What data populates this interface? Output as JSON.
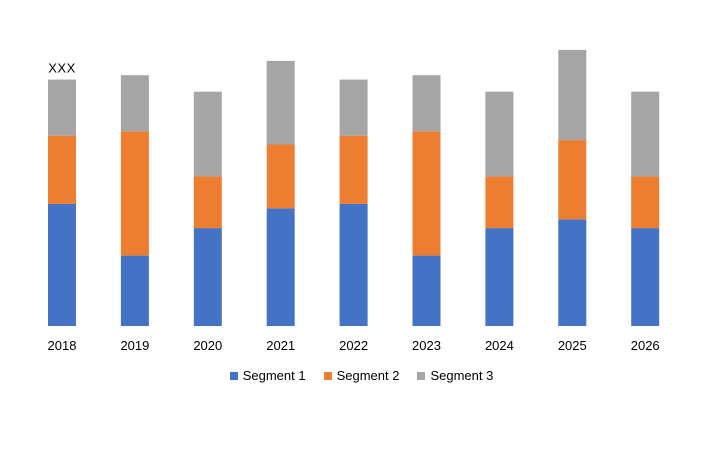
{
  "chart_data": {
    "type": "bar",
    "stacked": true,
    "categories": [
      "2018",
      "2019",
      "2020",
      "2021",
      "2022",
      "2023",
      "2024",
      "2025",
      "2026"
    ],
    "series": [
      {
        "name": "Segment 1",
        "color": "#4472C4",
        "values": [
          111,
          64,
          89,
          107,
          111,
          64,
          89,
          97,
          89
        ]
      },
      {
        "name": "Segment 2",
        "color": "#ED7D31",
        "values": [
          62,
          113,
          47,
          58,
          62,
          113,
          47,
          72,
          47
        ]
      },
      {
        "name": "Segment 3",
        "color": "#A5A5A5",
        "values": [
          51,
          51,
          77,
          76,
          51,
          51,
          77,
          82,
          77
        ]
      }
    ],
    "ylim": [
      0,
      260
    ],
    "annotation": {
      "category": "2018",
      "text": "XXX"
    },
    "gridlines": false,
    "legend_position": "bottom"
  }
}
